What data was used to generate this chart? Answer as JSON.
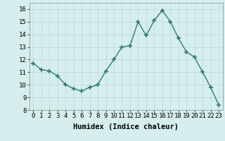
{
  "x": [
    0,
    1,
    2,
    3,
    4,
    5,
    6,
    7,
    8,
    9,
    10,
    11,
    12,
    13,
    14,
    15,
    16,
    17,
    18,
    19,
    20,
    21,
    22,
    23
  ],
  "y": [
    11.7,
    11.2,
    11.1,
    10.7,
    10.0,
    9.7,
    9.5,
    9.8,
    10.0,
    11.1,
    12.0,
    13.0,
    13.1,
    15.0,
    13.9,
    15.1,
    15.9,
    15.0,
    13.7,
    12.6,
    12.2,
    11.0,
    9.8,
    8.4
  ],
  "xlabel": "Humidex (Indice chaleur)",
  "ylim": [
    8,
    16.5
  ],
  "yticks": [
    8,
    9,
    10,
    11,
    12,
    13,
    14,
    15,
    16
  ],
  "xticks": [
    0,
    1,
    2,
    3,
    4,
    5,
    6,
    7,
    8,
    9,
    10,
    11,
    12,
    13,
    14,
    15,
    16,
    17,
    18,
    19,
    20,
    21,
    22,
    23
  ],
  "line_color": "#2e7d6e",
  "marker_color": "#2e7d6e",
  "bg_color": "#d6eeee",
  "grid_color": "#b8d8d8",
  "label_fontsize": 7.5,
  "tick_fontsize": 6.5
}
